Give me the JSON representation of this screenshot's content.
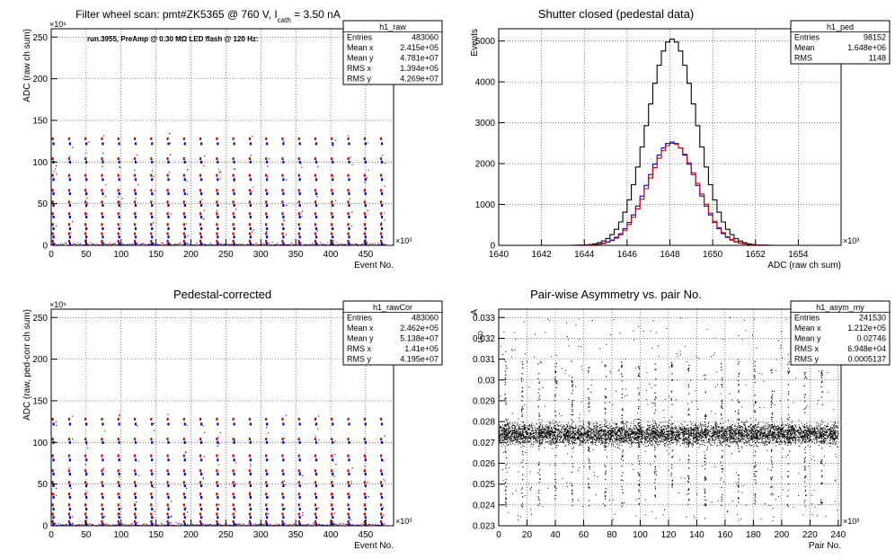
{
  "chart_data": [
    {
      "id": "raw",
      "type": "scatter",
      "title": "Filter wheel scan: pmt#ZK5365 @   760 V, I",
      "title_sub": "cath",
      "title_tail": " = 3.50 nA",
      "annotation": "run.3955, PreAmp @ 0.30 MΩ LED flash @  120 Hz:",
      "xlabel": "Event No.",
      "ylabel": "ADC (raw ch sum)",
      "x_exponent": "×10³",
      "y_exponent": "×10⁶",
      "xlim": [
        0,
        490
      ],
      "ylim": [
        0,
        260
      ],
      "xticks": [
        0,
        50,
        100,
        150,
        200,
        250,
        300,
        350,
        400,
        450
      ],
      "yticks": [
        0,
        50,
        100,
        150,
        200,
        250
      ],
      "grid": true,
      "stats": {
        "name": "h1_raw",
        "rows": [
          [
            "Entries",
            "483060"
          ],
          [
            "Mean x",
            "2.415e+05"
          ],
          [
            "Mean y",
            "4.781e+07"
          ],
          [
            "RMS x",
            "1.394e+05"
          ],
          [
            "RMS y",
            "4.269e+07"
          ]
        ]
      },
      "colors": [
        "#cc0000",
        "#0000cc"
      ],
      "levels": [
        128,
        122,
        104,
        100,
        84,
        79,
        66,
        62,
        52,
        48,
        38,
        34,
        25,
        20,
        14,
        10,
        5,
        2
      ],
      "period": 23.5
    },
    {
      "id": "ped",
      "type": "line",
      "title": "Shutter closed (pedestal data)",
      "xlabel": "ADC (raw ch sum)",
      "ylabel": "Events",
      "x_exponent": "×10³",
      "xlim": [
        1640,
        1656
      ],
      "ylim": [
        0,
        5300
      ],
      "xticks": [
        1640,
        1642,
        1644,
        1646,
        1648,
        1650,
        1652,
        1654
      ],
      "yticks": [
        0,
        1000,
        2000,
        3000,
        4000,
        5000
      ],
      "grid": true,
      "stats": {
        "name": "h1_ped",
        "rows": [
          [
            "Entries",
            "98152"
          ],
          [
            "Mean",
            "1.648e+06"
          ],
          [
            "RMS",
            "1148"
          ]
        ]
      },
      "series": [
        {
          "color": "#000000",
          "mean": 1648.0,
          "sigma": 1.15,
          "peak": 5050
        },
        {
          "color": "#0000cc",
          "mean": 1648.0,
          "sigma": 1.15,
          "peak": 2530
        },
        {
          "color": "#cc0000",
          "mean": 1648.05,
          "sigma": 1.15,
          "peak": 2500
        }
      ]
    },
    {
      "id": "rawCor",
      "type": "scatter",
      "title": "Pedestal-corrected",
      "xlabel": "Event No.",
      "ylabel": "ADC (raw, ped-corr ch sum)",
      "x_exponent": "×10³",
      "y_exponent": "×10⁶",
      "xlim": [
        0,
        490
      ],
      "ylim": [
        0,
        260
      ],
      "xticks": [
        0,
        50,
        100,
        150,
        200,
        250,
        300,
        350,
        400,
        450
      ],
      "yticks": [
        0,
        50,
        100,
        150,
        200,
        250
      ],
      "grid": true,
      "stats": {
        "name": "h1_rawCor",
        "rows": [
          [
            "Entries",
            "483060"
          ],
          [
            "Mean x",
            "2.462e+05"
          ],
          [
            "Mean y",
            "5.138e+07"
          ],
          [
            "RMS x",
            "1.41e+05"
          ],
          [
            "RMS y",
            "4.195e+07"
          ]
        ]
      },
      "colors": [
        "#cc0000",
        "#0000cc"
      ],
      "levels": [
        128,
        122,
        104,
        100,
        84,
        79,
        66,
        62,
        52,
        48,
        38,
        34,
        25,
        20,
        14,
        10,
        5,
        2
      ],
      "period": 23.5
    },
    {
      "id": "asym",
      "type": "scatter",
      "title": "Pair-wise Asymmetry vs. pair No.",
      "xlabel": "Pair No.",
      "ylabel": "A",
      "ylabel_sub": "LED",
      "x_exponent": "×10³",
      "xlim": [
        0,
        242
      ],
      "ylim": [
        0.023,
        0.0334
      ],
      "xticks": [
        0,
        20,
        40,
        60,
        80,
        100,
        120,
        140,
        160,
        180,
        200,
        220,
        240
      ],
      "yticks": [
        0.023,
        0.024,
        0.025,
        0.026,
        0.027,
        0.028,
        0.029,
        0.03,
        0.031,
        0.032,
        0.033
      ],
      "grid": true,
      "stats": {
        "name": "h1_asym_my",
        "rows": [
          [
            "Entries",
            "241530"
          ],
          [
            "Mean x",
            "1.212e+05"
          ],
          [
            "Mean y",
            "0.02746"
          ],
          [
            "RMS x",
            "6.948e+04"
          ],
          [
            "RMS y",
            "0.0005137"
          ]
        ]
      },
      "band_center": 0.0274,
      "band_width": 0.0009,
      "spike_period": 11.75
    }
  ]
}
